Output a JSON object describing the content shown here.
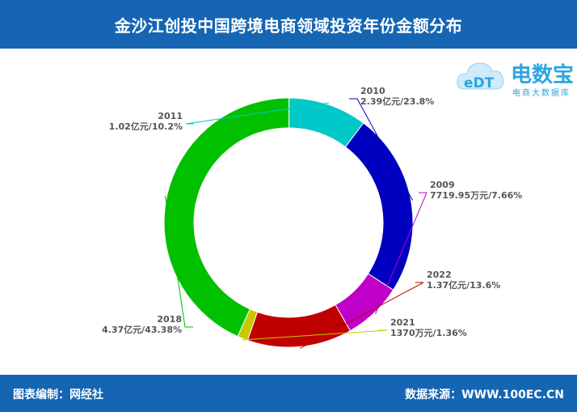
{
  "header": {
    "title": "金沙江创投中国跨境电商领域投资年份金额分布"
  },
  "footer": {
    "editor": "图表编制：网经社",
    "source": "数据来源：WWW.100EC.CN"
  },
  "logo": {
    "main": "电数宝",
    "sub": "电商大数据库",
    "badge": "eDT"
  },
  "chart_data": {
    "type": "pie",
    "donut": true,
    "title": "金沙江创投中国跨境电商领域投资年份金额分布",
    "slices": [
      {
        "label": "2010",
        "value_text": "2.39亿元/23.8%",
        "percent": 23.8,
        "color": "#0000c0"
      },
      {
        "label": "2009",
        "value_text": "7719.95万元/7.66%",
        "percent": 7.66,
        "color": "#c000c8"
      },
      {
        "label": "2022",
        "value_text": "1.37亿元/13.6%",
        "percent": 13.6,
        "color": "#c00000"
      },
      {
        "label": "2021",
        "value_text": "1370万元/1.36%",
        "percent": 1.36,
        "color": "#c8c800"
      },
      {
        "label": "2018",
        "value_text": "4.37亿元/43.38%",
        "percent": 43.38,
        "color": "#00c000"
      },
      {
        "label": "2011",
        "value_text": "1.02亿元/10.2%",
        "percent": 10.2,
        "color": "#00c8c8"
      }
    ]
  }
}
